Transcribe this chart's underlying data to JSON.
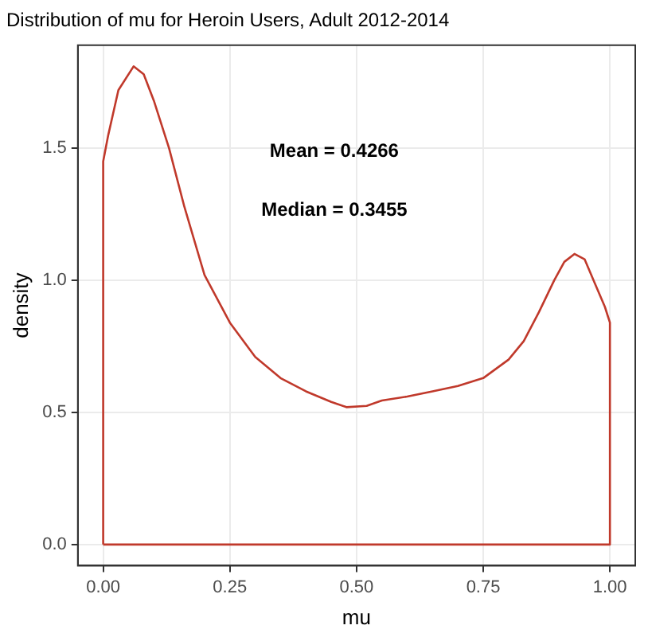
{
  "chart_data": {
    "type": "line",
    "title": "Distribution of mu for Heroin Users, Adult 2012-2014",
    "xlabel": "mu",
    "ylabel": "density",
    "annotations": [
      "Mean = 0.4266",
      "Median = 0.3455"
    ],
    "series": [
      {
        "color": "#c0392b",
        "x": [
          0,
          0,
          0.01,
          0.03,
          0.06,
          0.08,
          0.1,
          0.13,
          0.16,
          0.2,
          0.25,
          0.3,
          0.35,
          0.4,
          0.45,
          0.48,
          0.52,
          0.55,
          0.6,
          0.65,
          0.7,
          0.75,
          0.8,
          0.83,
          0.86,
          0.89,
          0.91,
          0.93,
          0.95,
          0.97,
          0.99,
          1,
          1
        ],
        "values": [
          0,
          1.45,
          1.55,
          1.72,
          1.81,
          1.78,
          1.68,
          1.5,
          1.28,
          1.02,
          0.84,
          0.71,
          0.63,
          0.58,
          0.54,
          0.52,
          0.525,
          0.545,
          0.56,
          0.58,
          0.6,
          0.63,
          0.7,
          0.77,
          0.88,
          1.0,
          1.07,
          1.1,
          1.08,
          0.99,
          0.9,
          0.84,
          0
        ]
      },
      {
        "color": "#c0392b",
        "x": [
          0,
          1
        ],
        "values": [
          0,
          0
        ]
      }
    ],
    "xlim": [
      -0.05,
      1.05
    ],
    "ylim": [
      -0.08,
      1.89
    ],
    "xticks": [
      {
        "value": 0,
        "label": "0.00"
      },
      0.25,
      {
        "value": 0.5,
        "label": "0.50"
      },
      0.75,
      {
        "value": 1,
        "label": "1.00"
      }
    ],
    "yticks": [
      {
        "value": 0,
        "label": "0.0"
      },
      0.5,
      {
        "value": 1,
        "label": "1.0"
      },
      1.5
    ],
    "grid": true,
    "legend": false,
    "marker": "none",
    "line_style": "solid"
  }
}
